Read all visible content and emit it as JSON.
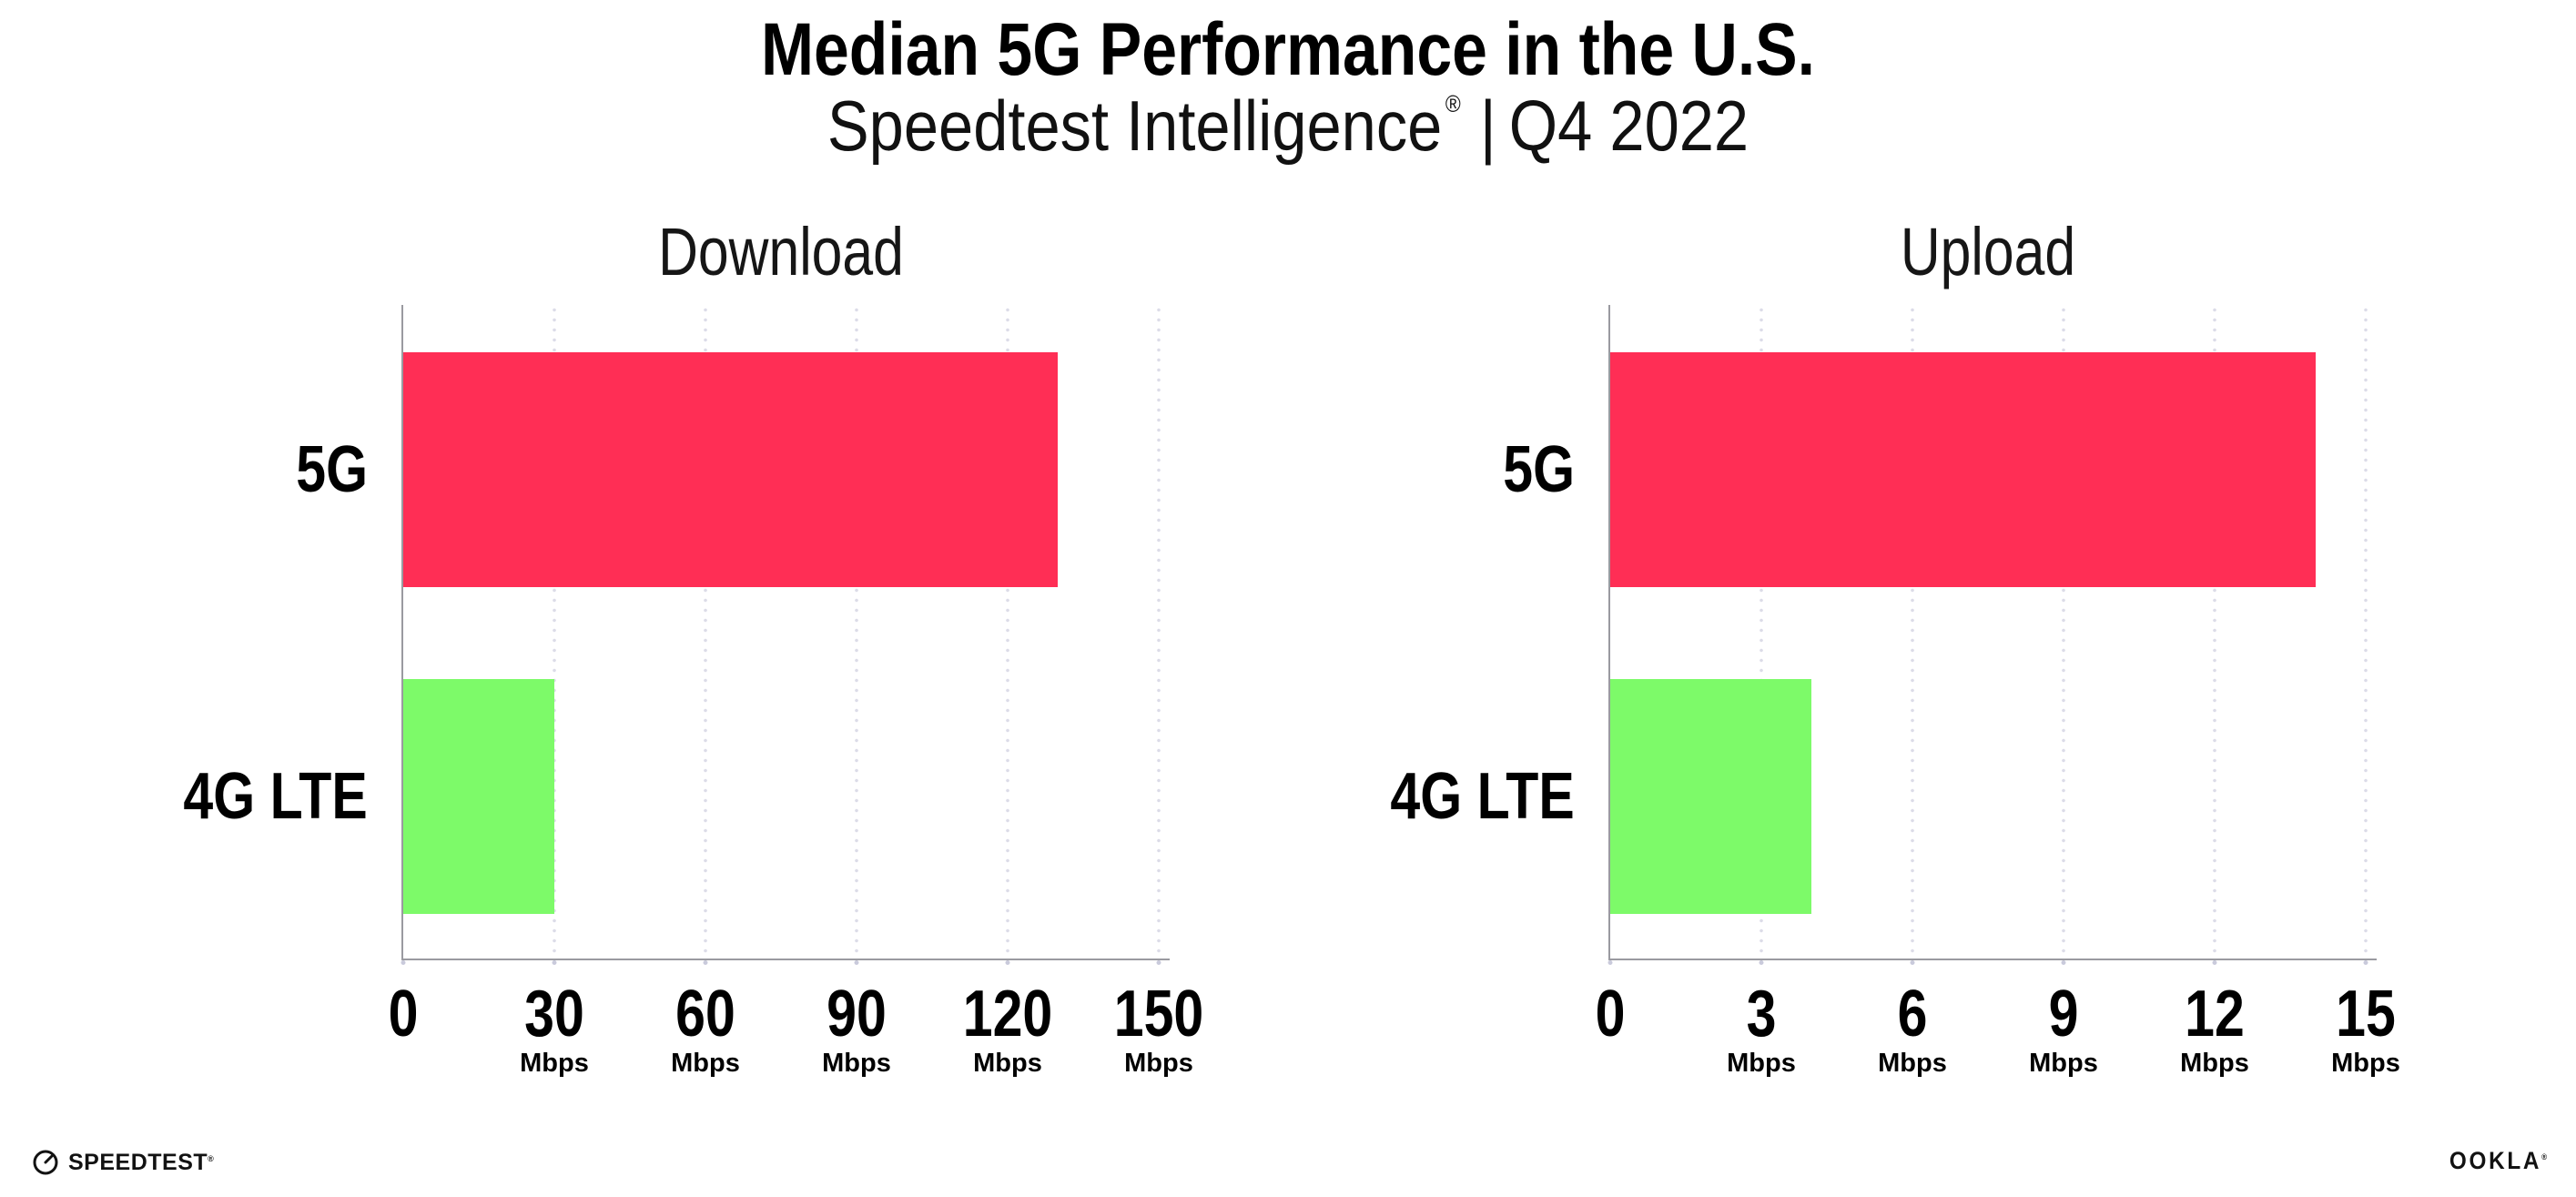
{
  "header": {
    "title": "Median 5G Performance in the U.S.",
    "subtitle_brand": "Speedtest Intelligence",
    "subtitle_reg": "®",
    "subtitle_divider": "|",
    "subtitle_period": "Q4 2022"
  },
  "footer": {
    "speedtest_label": "SPEEDTEST",
    "speedtest_reg": "®",
    "ookla_label": "OOKLA",
    "ookla_reg": "®"
  },
  "colors": {
    "bar_5g": "#FF2E55",
    "bar_4g_lte": "#7DFA69",
    "axis": "#9A9AA0",
    "gridline": "#DCDCE8",
    "tick_dot": "#C9CADB",
    "text": "#000000"
  },
  "chart_data": [
    {
      "type": "bar",
      "orientation": "horizontal",
      "title": "Download",
      "categories": [
        "5G",
        "4G LTE"
      ],
      "values": [
        130,
        30
      ],
      "unit": "Mbps",
      "xlim": [
        0,
        150
      ],
      "xticks": [
        0,
        30,
        60,
        90,
        120,
        150
      ],
      "grid": "vertical-dotted",
      "legend": "none",
      "bar_colors": [
        "#FF2E55",
        "#7DFA69"
      ]
    },
    {
      "type": "bar",
      "orientation": "horizontal",
      "title": "Upload",
      "categories": [
        "5G",
        "4G LTE"
      ],
      "values": [
        14,
        4
      ],
      "unit": "Mbps",
      "xlim": [
        0,
        15
      ],
      "xticks": [
        0,
        3,
        6,
        9,
        12,
        15
      ],
      "grid": "vertical-dotted",
      "legend": "none",
      "bar_colors": [
        "#FF2E55",
        "#7DFA69"
      ]
    }
  ]
}
